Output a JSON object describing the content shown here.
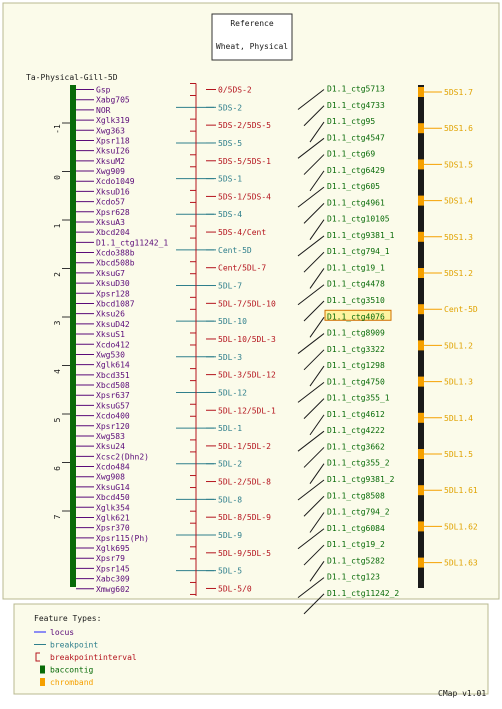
{
  "reference_box": {
    "line1": "Reference",
    "line2": "Wheat, Physical"
  },
  "map_title": "Ta-Physical-Gill-5D",
  "scale_ticks": [
    "-1",
    "0",
    "1",
    "2",
    "3",
    "4",
    "5",
    "6",
    "7"
  ],
  "loci": [
    "Gsp",
    "Xabg705",
    "NOR",
    "Xglk319",
    "Xwg363",
    "Xpsr118",
    "XksuI26",
    "XksuM2",
    "Xwg909",
    "Xcdo1049",
    "XksuD16",
    "Xcdo57",
    "Xpsr628",
    "XksuA3",
    "Xbcd204",
    "D1.1_ctg11242_1",
    "Xcdo388b",
    "Xbcd508b",
    "XksuG7",
    "XksuD30",
    "Xpsr128",
    "Xbcd1087",
    "Xksu26",
    "XksuD42",
    "XksuS1",
    "Xcdo412",
    "Xwg530",
    "Xglk614",
    "Xbcd351",
    "Xbcd508",
    "Xpsr637",
    "XksuG57",
    "Xcdo400",
    "Xpsr120",
    "Xwg583",
    "Xksu24",
    "Xcsc2(Dhn2)",
    "Xcdo484",
    "Xwg908",
    "XksuG14",
    "Xbcd450",
    "Xglk354",
    "Xglk621",
    "Xpsr370",
    "Xpsr115(Ph)",
    "Xglk695",
    "Xpsr79",
    "Xpsr145",
    "Xabc309",
    "Xmwg602"
  ],
  "bins": [
    {
      "label": "0/5DS-2",
      "color": "red"
    },
    {
      "label": "5DS-2",
      "color": "teal"
    },
    {
      "label": "5DS-2/5DS-5",
      "color": "red"
    },
    {
      "label": "5DS-5",
      "color": "teal"
    },
    {
      "label": "5DS-5/5DS-1",
      "color": "red"
    },
    {
      "label": "5DS-1",
      "color": "teal"
    },
    {
      "label": "5DS-1/5DS-4",
      "color": "red"
    },
    {
      "label": "5DS-4",
      "color": "teal"
    },
    {
      "label": "5DS-4/Cent",
      "color": "red"
    },
    {
      "label": "Cent-5D",
      "color": "teal"
    },
    {
      "label": "Cent/5DL-7",
      "color": "red"
    },
    {
      "label": "5DL-7",
      "color": "teal"
    },
    {
      "label": "5DL-7/5DL-10",
      "color": "red"
    },
    {
      "label": "5DL-10",
      "color": "teal"
    },
    {
      "label": "5DL-10/5DL-3",
      "color": "red"
    },
    {
      "label": "5DL-3",
      "color": "teal"
    },
    {
      "label": "5DL-3/5DL-12",
      "color": "red"
    },
    {
      "label": "5DL-12",
      "color": "teal"
    },
    {
      "label": "5DL-12/5DL-1",
      "color": "red"
    },
    {
      "label": "5DL-1",
      "color": "teal"
    },
    {
      "label": "5DL-1/5DL-2",
      "color": "red"
    },
    {
      "label": "5DL-2",
      "color": "teal"
    },
    {
      "label": "5DL-2/5DL-8",
      "color": "red"
    },
    {
      "label": "5DL-8",
      "color": "teal"
    },
    {
      "label": "5DL-8/5DL-9",
      "color": "red"
    },
    {
      "label": "5DL-9",
      "color": "teal"
    },
    {
      "label": "5DL-9/5DL-5",
      "color": "red"
    },
    {
      "label": "5DL-5",
      "color": "teal"
    },
    {
      "label": "5DL-5/0",
      "color": "red"
    }
  ],
  "contigs": [
    "D1.1_ctg5713",
    "D1.1_ctg4733",
    "D1.1_ctg95",
    "D1.1_ctg4547",
    "D1.1_ctg69",
    "D1.1_ctg6429",
    "D1.1_ctg605",
    "D1.1_ctg4961",
    "D1.1_ctg10105",
    "D1.1_ctg9381_1",
    "D1.1_ctg794_1",
    "D1.1_ctg19_1",
    "D1.1_ctg4478",
    "D1.1_ctg3510",
    "D1.1_ctg4076",
    "D1.1_ctg8909",
    "D1.1_ctg3322",
    "D1.1_ctg1298",
    "D1.1_ctg4750",
    "D1.1_ctg355_1",
    "D1.1_ctg4612",
    "D1.1_ctg4222",
    "D1.1_ctg3662",
    "D1.1_ctg355_2",
    "D1.1_ctg9381_2",
    "D1.1_ctg8508",
    "D1.1_ctg794_2",
    "D1.1_ctg6084",
    "D1.1_ctg19_2",
    "D1.1_ctg5282",
    "D1.1_ctg123",
    "D1.1_ctg11242_2"
  ],
  "highlighted_contig": "D1.1_ctg4076",
  "chrombands": [
    "5DS1.7",
    "5DS1.6",
    "5DS1.5",
    "5DS1.4",
    "5DS1.3",
    "5DS1.2",
    "Cent-5D",
    "5DL1.2",
    "5DL1.3",
    "5DL1.4",
    "5DL1.5",
    "5DL1.61",
    "5DL1.62",
    "5DL1.63"
  ],
  "legend": {
    "title": "Feature Types:",
    "items": [
      {
        "label": "locus",
        "color": "#1c1cff"
      },
      {
        "label": "breakpoint",
        "color": "#2f7f8c"
      },
      {
        "label": "breakpointinterval",
        "color": "#b4141e"
      },
      {
        "label": "baccontig",
        "color": "#086b08"
      },
      {
        "label": "chromband",
        "color": "#f5a000"
      }
    ]
  },
  "version": "CMap v1.01",
  "colors": {
    "bg": "#fbfbea",
    "border": "#b8b890",
    "purple": "#5a0a78",
    "red": "#b4141e",
    "teal": "#2f7f8c",
    "green": "#086b08",
    "orange": "#f5a000",
    "highlight": "#fff3a0"
  }
}
